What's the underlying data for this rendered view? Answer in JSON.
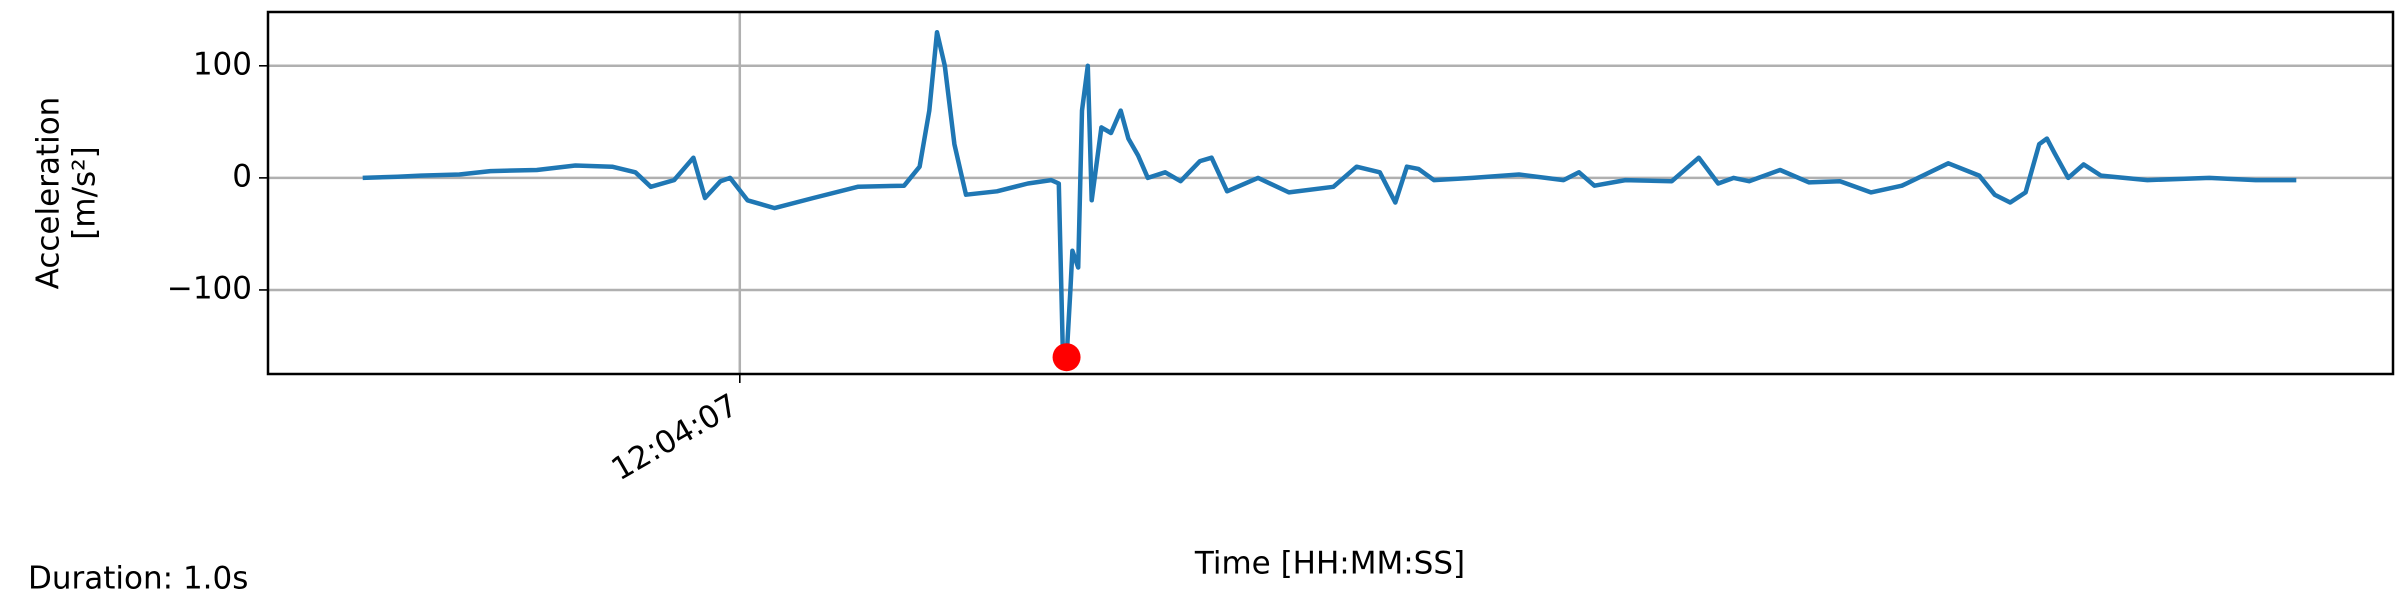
{
  "chart_data": {
    "type": "line",
    "x_label": "Time [HH:MM:SS]",
    "y_label": [
      "Acceleration",
      "[m/s²]"
    ],
    "annotation": "Duration: 1.0s",
    "xlim": [
      43446.756,
      43447.855
    ],
    "xticks": [
      {
        "value": 43447,
        "label": "12:04:07"
      }
    ],
    "ylim": [
      -175,
      148
    ],
    "yticks": [
      {
        "value": -100,
        "label": "−100"
      },
      0,
      100
    ],
    "grid": true,
    "x": [
      43446.805,
      43446.823,
      43446.835,
      43446.855,
      43446.871,
      43446.895,
      43446.915,
      43446.934,
      43446.946,
      43446.954,
      43446.966,
      43446.976,
      43446.982,
      43446.99,
      43446.995,
      43447.004,
      43447.018,
      43447.038,
      43447.061,
      43447.085,
      43447.093,
      43447.098,
      43447.102,
      43447.106,
      43447.111,
      43447.117,
      43447.133,
      43447.149,
      43447.161,
      43447.165,
      43447.167,
      43447.169,
      43447.171,
      43447.172,
      43447.175,
      43447.177,
      43447.18,
      43447.182,
      43447.187,
      43447.192,
      43447.197,
      43447.201,
      43447.206,
      43447.211,
      43447.22,
      43447.228,
      43447.238,
      43447.244,
      43447.252,
      43447.268,
      43447.284,
      43447.307,
      43447.319,
      43447.331,
      43447.339,
      43447.345,
      43447.351,
      43447.359,
      43447.379,
      43447.403,
      43447.426,
      43447.434,
      43447.442,
      43447.458,
      43447.482,
      43447.496,
      43447.506,
      43447.514,
      43447.522,
      43447.538,
      43447.553,
      43447.569,
      43447.585,
      43447.601,
      43447.625,
      43447.641,
      43447.649,
      43447.657,
      43447.665,
      43447.672,
      43447.676,
      43447.68,
      43447.687,
      43447.695,
      43447.704,
      43447.728,
      43447.76,
      43447.784,
      43447.805
    ],
    "series": [
      {
        "color": "#1f77b4",
        "values": [
          0,
          1,
          2,
          3,
          6,
          7,
          11,
          10,
          5,
          -8,
          -2,
          18,
          -18,
          -3,
          0,
          -20,
          -27,
          -18,
          -8,
          -7,
          10,
          60,
          130,
          100,
          30,
          -15,
          -12,
          -5,
          -2,
          -5,
          -150,
          -160,
          -100,
          -65,
          -80,
          60,
          100,
          -20,
          45,
          40,
          60,
          35,
          20,
          0,
          5,
          -3,
          15,
          18,
          -12,
          0,
          -13,
          -8,
          10,
          5,
          -22,
          10,
          8,
          -2,
          0,
          3,
          -2,
          5,
          -7,
          -2,
          -3,
          18,
          -5,
          0,
          -3,
          7,
          -4,
          -3,
          -13,
          -7,
          13,
          2,
          -15,
          -22,
          -13,
          30,
          35,
          22,
          0,
          12,
          2,
          -2,
          0,
          -2,
          -2
        ]
      }
    ],
    "marker": {
      "x": 43447.169,
      "y": -160,
      "color": "#ff0000"
    }
  }
}
